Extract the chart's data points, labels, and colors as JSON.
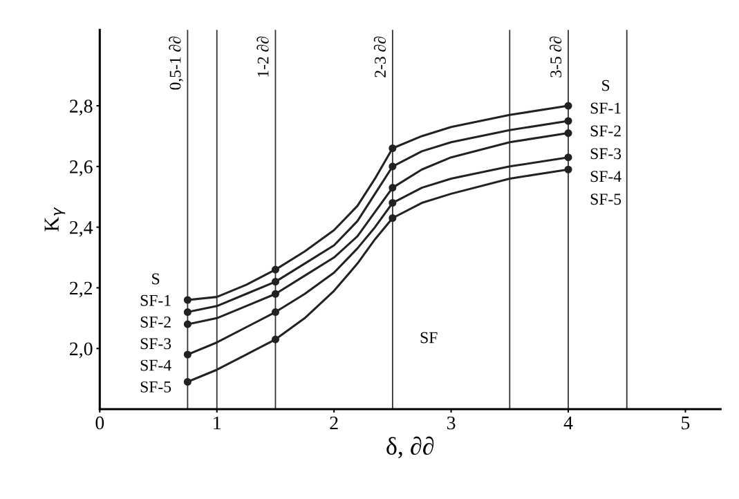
{
  "chart_data": {
    "type": "line",
    "xlabel": "δ, ∂∂",
    "ylabel": "K$_{γ}$",
    "xlim": [
      0,
      5.3
    ],
    "ylim": [
      1.8,
      3.05
    ],
    "xticks": [
      0,
      1,
      2,
      3,
      4,
      5
    ],
    "yticks": [
      {
        "value": 2.0,
        "label": "2,0"
      },
      {
        "value": 2.2,
        "label": "2,2"
      },
      {
        "value": 2.4,
        "label": "2,4"
      },
      {
        "value": 2.6,
        "label": "2,6"
      },
      {
        "value": 2.8,
        "label": "2,8"
      }
    ],
    "grid": false,
    "line_style": "solid",
    "x": [
      0.75,
      1.0,
      1.25,
      1.5,
      1.75,
      2.0,
      2.2,
      2.35,
      2.5,
      2.75,
      3.0,
      3.5,
      4.0
    ],
    "series": [
      {
        "marker": "none",
        "color": "#222222",
        "values": [
          2.16,
          2.17,
          2.21,
          2.26,
          2.32,
          2.39,
          2.47,
          2.56,
          2.66,
          2.7,
          2.73,
          2.77,
          2.8
        ]
      },
      {
        "marker": "none",
        "color": "#222222",
        "values": [
          2.12,
          2.14,
          2.18,
          2.22,
          2.28,
          2.34,
          2.42,
          2.51,
          2.6,
          2.65,
          2.68,
          2.72,
          2.75
        ]
      },
      {
        "marker": "none",
        "color": "#222222",
        "values": [
          2.08,
          2.1,
          2.14,
          2.18,
          2.24,
          2.3,
          2.37,
          2.45,
          2.53,
          2.59,
          2.63,
          2.68,
          2.71
        ]
      },
      {
        "marker": "none",
        "color": "#222222",
        "values": [
          1.98,
          2.02,
          2.07,
          2.12,
          2.18,
          2.25,
          2.33,
          2.4,
          2.48,
          2.53,
          2.56,
          2.6,
          2.63
        ]
      },
      {
        "marker": "none",
        "color": "#222222",
        "values": [
          1.89,
          1.93,
          1.98,
          2.03,
          2.1,
          2.19,
          2.28,
          2.36,
          2.43,
          2.48,
          2.51,
          2.56,
          2.59
        ]
      },
      {
        "type": "scatter",
        "marker": "circle",
        "color": "#222222",
        "x": [
          0.75,
          1.5,
          2.5,
          4.0
        ],
        "values": [
          2.16,
          2.26,
          2.66,
          2.8
        ]
      },
      {
        "type": "scatter",
        "marker": "circle",
        "color": "#222222",
        "x": [
          0.75,
          1.5,
          2.5,
          4.0
        ],
        "values": [
          2.12,
          2.22,
          2.6,
          2.75
        ]
      },
      {
        "type": "scatter",
        "marker": "circle",
        "color": "#222222",
        "x": [
          0.75,
          1.5,
          2.5,
          4.0
        ],
        "values": [
          2.08,
          2.18,
          2.53,
          2.71
        ]
      },
      {
        "type": "scatter",
        "marker": "circle",
        "color": "#222222",
        "x": [
          0.75,
          1.5,
          2.5,
          4.0
        ],
        "values": [
          1.98,
          2.12,
          2.48,
          2.63
        ]
      },
      {
        "type": "scatter",
        "marker": "circle",
        "color": "#222222",
        "x": [
          0.75,
          1.5,
          2.5,
          4.0
        ],
        "values": [
          1.89,
          2.03,
          2.43,
          2.59
        ]
      }
    ],
    "ref_lines": [
      {
        "axis": "x",
        "value": 0.75,
        "label": "0,5-1 ∂∂"
      },
      {
        "axis": "x",
        "value": 1.0
      },
      {
        "axis": "x",
        "value": 1.5,
        "label": "1-2 ∂∂"
      },
      {
        "axis": "x",
        "value": 2.5,
        "label": "2-3 ∂∂"
      },
      {
        "axis": "x",
        "value": 3.5
      },
      {
        "axis": "x",
        "value": 4.0,
        "label": "3-5 ∂∂"
      },
      {
        "axis": "x",
        "value": 4.5
      }
    ],
    "annotations": [
      "S",
      "SF-1",
      "SF-2",
      "SF-3",
      "SF-4",
      "SF-5",
      "S",
      "SF-1",
      "SF-2",
      "SF-3",
      "SF-4",
      "SF-5",
      "SF"
    ]
  }
}
